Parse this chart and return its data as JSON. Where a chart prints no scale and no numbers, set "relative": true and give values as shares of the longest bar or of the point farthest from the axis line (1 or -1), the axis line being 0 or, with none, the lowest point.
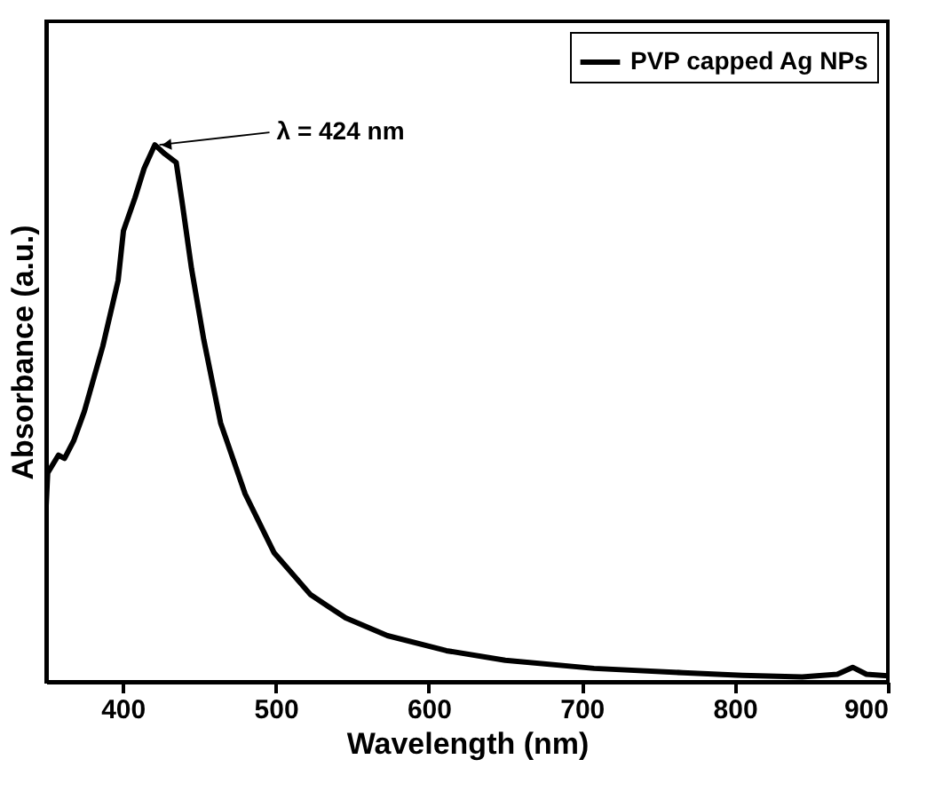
{
  "chart_data": {
    "type": "line",
    "xlabel": "Wavelength (nm)",
    "ylabel": "Absorbance (a.u.)",
    "relative": true,
    "xlim": [
      350,
      900
    ],
    "xticks": [
      400,
      500,
      600,
      700,
      800,
      900
    ],
    "legend": "top right",
    "grid": false,
    "marker": "none",
    "line_style": "solid",
    "annotations": [
      {
        "text": "λ = 424 nm",
        "x": 424,
        "y": 1
      }
    ],
    "series": [
      {
        "name": "PVP capped Ag NPs",
        "color": "#000000",
        "x": [
          350,
          351,
          358,
          362,
          368,
          375,
          387,
          397,
          400.5,
          408,
          414,
          421,
          427.6,
          435,
          439,
          445,
          453,
          464,
          480,
          499,
          522.5,
          534,
          545.7,
          573,
          611.5,
          650,
          708,
          766,
          805,
          844,
          867,
          877,
          886,
          900
        ],
        "values": [
          0.328,
          0.389,
          0.422,
          0.416,
          0.449,
          0.504,
          0.625,
          0.747,
          0.84,
          0.901,
          0.956,
          1,
          0.983,
          0.967,
          0.89,
          0.769,
          0.637,
          0.482,
          0.35,
          0.24,
          0.163,
          0.141,
          0.119,
          0.086,
          0.058,
          0.04,
          0.025,
          0.017,
          0.012,
          0.009,
          0.014,
          0.027,
          0.014,
          0.011
        ]
      }
    ]
  }
}
